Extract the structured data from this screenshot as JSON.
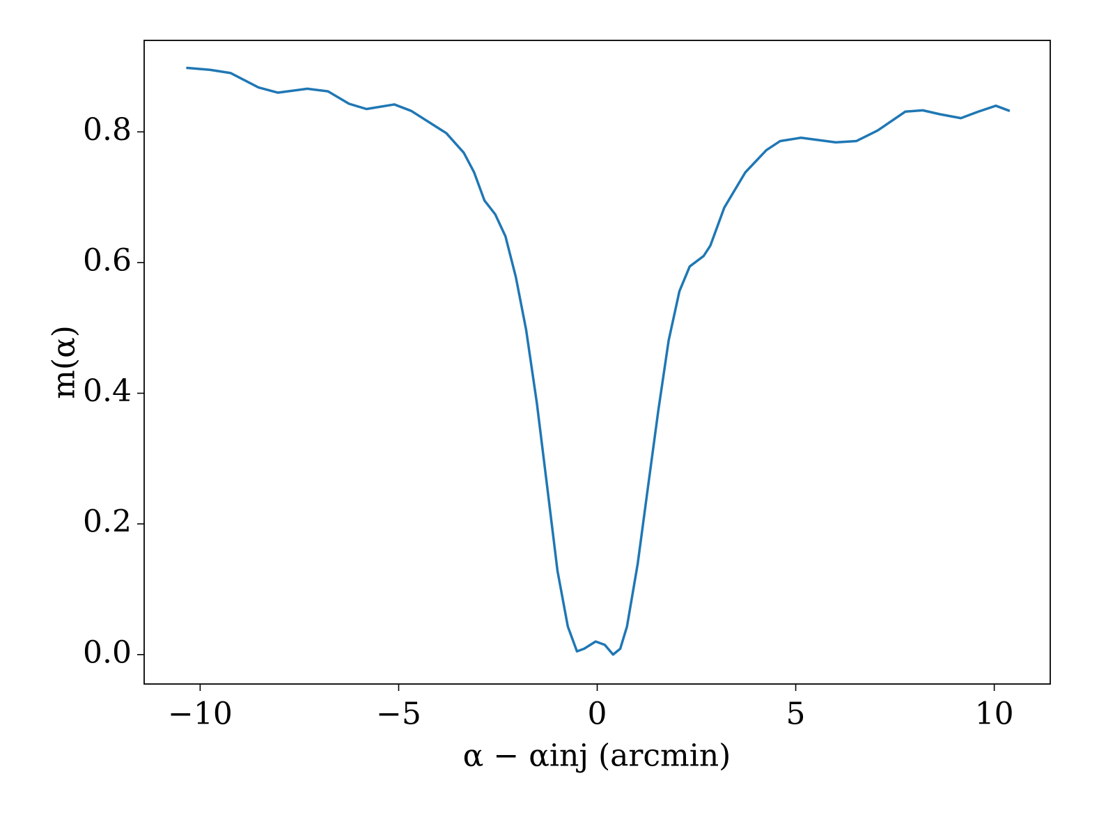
{
  "chart_data": {
    "type": "line",
    "xlabel": "α − αinj (arcmin)",
    "ylabel": "m(α)",
    "x": [
      -10.35,
      -9.75,
      -9.23,
      -8.53,
      -8.04,
      -7.3,
      -6.78,
      -6.25,
      -5.81,
      -5.11,
      -4.68,
      -3.8,
      -3.36,
      -3.1,
      -2.84,
      -2.57,
      -2.31,
      -2.05,
      -1.79,
      -1.52,
      -1.26,
      -1.0,
      -0.74,
      -0.51,
      -0.33,
      -0.04,
      0.19,
      0.4,
      0.58,
      0.75,
      1.02,
      1.28,
      1.54,
      1.8,
      2.07,
      2.33,
      2.68,
      2.85,
      3.2,
      3.73,
      4.26,
      4.61,
      5.13,
      6.01,
      6.53,
      7.06,
      7.76,
      8.2,
      8.63,
      9.16,
      9.6,
      10.04,
      10.39
    ],
    "series": [
      {
        "color": "#1f77b4",
        "values": [
          0.898,
          0.895,
          0.89,
          0.868,
          0.86,
          0.866,
          0.862,
          0.843,
          0.835,
          0.842,
          0.832,
          0.798,
          0.768,
          0.738,
          0.695,
          0.674,
          0.64,
          0.578,
          0.497,
          0.385,
          0.257,
          0.128,
          0.043,
          0.005,
          0.009,
          0.02,
          0.015,
          0.0,
          0.009,
          0.043,
          0.139,
          0.257,
          0.374,
          0.481,
          0.556,
          0.594,
          0.61,
          0.626,
          0.684,
          0.738,
          0.772,
          0.786,
          0.791,
          0.784,
          0.786,
          0.802,
          0.831,
          0.833,
          0.827,
          0.821,
          0.831,
          0.84,
          0.832
        ]
      }
    ],
    "xlim": [
      -11.41,
      11.41
    ],
    "ylim": [
      -0.045,
      0.94
    ],
    "xticks": [
      {
        "value": -10,
        "label": "−10"
      },
      {
        "value": -5,
        "label": "−5"
      },
      0,
      5,
      10
    ],
    "yticks": [
      {
        "value": 0,
        "label": "0.0"
      },
      0.2,
      0.4,
      0.6,
      0.8
    ],
    "grid": false
  }
}
